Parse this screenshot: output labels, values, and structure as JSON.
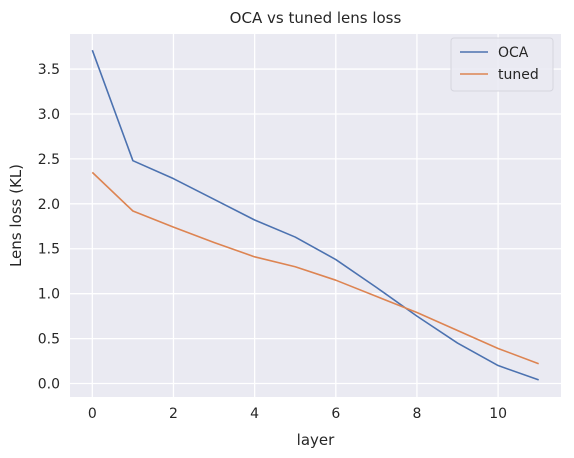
{
  "chart_data": {
    "type": "line",
    "title": "OCA vs tuned lens loss",
    "xlabel": "layer",
    "ylabel": "Lens loss (KL)",
    "x": [
      0,
      1,
      2,
      3,
      4,
      5,
      6,
      7,
      8,
      9,
      10,
      11
    ],
    "xlim": [
      -0.55,
      11.55
    ],
    "ylim": [
      -0.15,
      3.89
    ],
    "xticks": [
      0,
      2,
      4,
      6,
      8,
      10
    ],
    "yticks": [
      0.0,
      0.5,
      1.0,
      1.5,
      2.0,
      2.5,
      3.0,
      3.5
    ],
    "xtick_labels": [
      "0",
      "2",
      "4",
      "6",
      "8",
      "10"
    ],
    "ytick_labels": [
      "0.0",
      "0.5",
      "1.0",
      "1.5",
      "2.0",
      "2.5",
      "3.0",
      "3.5"
    ],
    "grid": true,
    "legend_position": "top-right",
    "series": [
      {
        "name": "OCA",
        "color": "#4c72b0",
        "values": [
          3.71,
          2.48,
          2.28,
          2.05,
          1.82,
          1.63,
          1.38,
          1.07,
          0.75,
          0.45,
          0.2,
          0.04
        ]
      },
      {
        "name": "tuned",
        "color": "#dd8452",
        "values": [
          2.35,
          1.92,
          1.74,
          1.57,
          1.41,
          1.3,
          1.15,
          0.97,
          0.79,
          0.59,
          0.39,
          0.22
        ]
      }
    ],
    "background_color": "#eaeaf2",
    "grid_color": "#ffffff"
  }
}
